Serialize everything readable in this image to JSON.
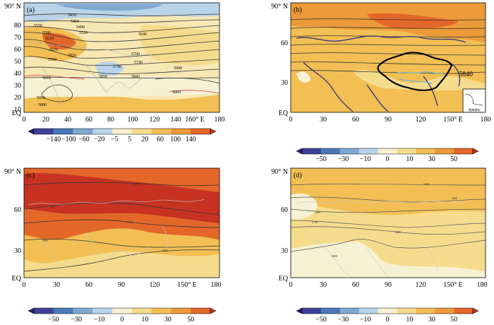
{
  "panels": [
    {
      "id": "a",
      "label": "(a)",
      "y_ticks": [
        "EQ",
        "10",
        "20",
        "30",
        "40",
        "50",
        "60",
        "70",
        "80",
        "90° N"
      ],
      "x_ticks": [
        "0",
        "20",
        "40",
        "60",
        "80",
        "100",
        "120",
        "140",
        "160° E",
        "180"
      ],
      "colorbar_ticks": [
        "−140",
        "−100",
        "−60",
        "−20",
        "−5",
        "5",
        "20",
        "60",
        "100",
        "140"
      ],
      "contour_labels": [
        "5430",
        "5460",
        "5490",
        "5520",
        "5550",
        "5580",
        "5610",
        "5640",
        "5670",
        "5700",
        "5730",
        "5760",
        "5790",
        "5810",
        "5820",
        "5840",
        "5850",
        "5860",
        "5880",
        "5900",
        "5910"
      ]
    },
    {
      "id": "b",
      "label": "(b)",
      "y_ticks": [
        "EQ",
        "30",
        "60",
        "90° N"
      ],
      "x_ticks": [
        "0",
        "30",
        "60",
        "90",
        "120",
        "150° E",
        "180"
      ],
      "colorbar_ticks": [
        "−50",
        "−30",
        "−10",
        "0",
        "10",
        "30",
        "50"
      ],
      "contour_labels": [
        "5840"
      ],
      "inset_text": "南海诸岛"
    },
    {
      "id": "c",
      "label": "(c)",
      "y_ticks": [
        "EQ",
        "30",
        "60",
        "90° N"
      ],
      "x_ticks": [
        "0",
        "30",
        "60",
        "90",
        "120",
        "150° E",
        "180"
      ],
      "colorbar_ticks": [
        "−50",
        "−30",
        "−10",
        "0",
        "10",
        "30",
        "50"
      ],
      "contour_labels": [
        "5480",
        "5580",
        "5700",
        "5800",
        "5880"
      ]
    },
    {
      "id": "d",
      "label": "(d)",
      "y_ticks": [
        "EQ",
        "30",
        "60",
        "90° N"
      ],
      "x_ticks": [
        "0",
        "30",
        "60",
        "90",
        "120",
        "150° E",
        "180"
      ],
      "colorbar_ticks": [
        "−50",
        "−30",
        "−10",
        "0",
        "10",
        "30",
        "50"
      ],
      "contour_labels": [
        "5480",
        "5580",
        "5680",
        "5700",
        "5800",
        "5880"
      ]
    }
  ],
  "colors": {
    "diverging_scale": [
      "#2b1a6b",
      "#3f3f9a",
      "#4a79b8",
      "#7fa9d1",
      "#b9d4e8",
      "#f6f1d2",
      "#f5dc8c",
      "#f2bf54",
      "#ec9a3a",
      "#e4672a",
      "#c73222"
    ],
    "ocean_light": "#f7d988",
    "land_outline": "#c9c9c9",
    "contour": "#333333",
    "china_border": "#000000",
    "coast_b": "#3a3a7a",
    "river": "#6fb9d8",
    "red_contour": "#e03c3c"
  }
}
